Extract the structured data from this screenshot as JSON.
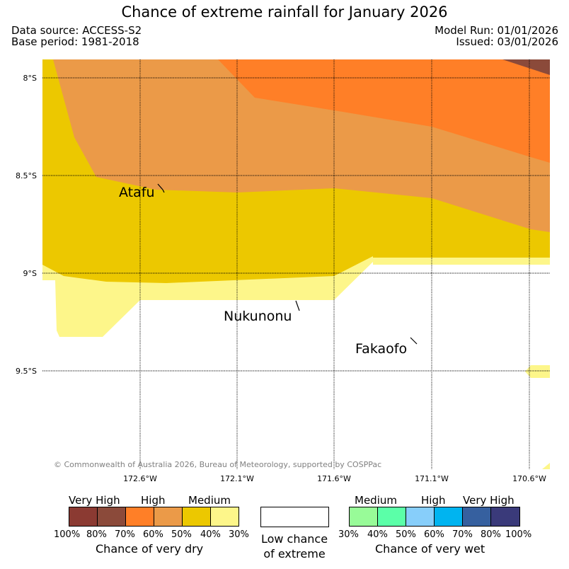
{
  "title": "Chance of extreme rainfall for January 2026",
  "header": {
    "data_source": "Data source: ACCESS-S2",
    "base_period": "Base period: 1981-2018",
    "model_run": "Model Run: 01/01/2026",
    "issued": "Issued: 03/01/2026"
  },
  "map": {
    "lat_labels": [
      "8°S",
      "8.5°S",
      "9°S",
      "9.5°S"
    ],
    "lon_labels": [
      "172.6°W",
      "172.1°W",
      "171.6°W",
      "171.1°W",
      "170.6°W"
    ],
    "places": [
      {
        "name": "Atafu"
      },
      {
        "name": "Nukunonu"
      },
      {
        "name": "Fakaofo"
      }
    ],
    "copyright": "© Commonwealth of Australia 2026, Bureau of Meteorology, supported by COSPPac",
    "colors": {
      "very_high_dry": "#8B4A3A",
      "high_dry": "#FF7F27",
      "medium_high_dry": "#EB9A48",
      "medium_dry": "#ECC800",
      "low_dry": "#FDF68A"
    }
  },
  "legend": {
    "dry": {
      "categories": [
        "Very High",
        "High",
        "Medium"
      ],
      "colors": [
        "#8B3A32",
        "#8B4A3A",
        "#FF7F27",
        "#EB9A48",
        "#ECC800",
        "#FDF68A"
      ],
      "ticks": [
        "100%",
        "80%",
        "70%",
        "60%",
        "50%",
        "40%",
        "30%"
      ],
      "caption": "Chance of very dry"
    },
    "low": {
      "line1": "Low chance",
      "line2": "of extreme"
    },
    "wet": {
      "categories": [
        "Medium",
        "High",
        "Very High"
      ],
      "colors": [
        "#98FB98",
        "#5BFFA8",
        "#87CEFA",
        "#00B4F0",
        "#36609F",
        "#3A3A7A"
      ],
      "ticks": [
        "30%",
        "40%",
        "50%",
        "60%",
        "70%",
        "80%",
        "100%"
      ],
      "caption": "Chance of very wet"
    }
  }
}
